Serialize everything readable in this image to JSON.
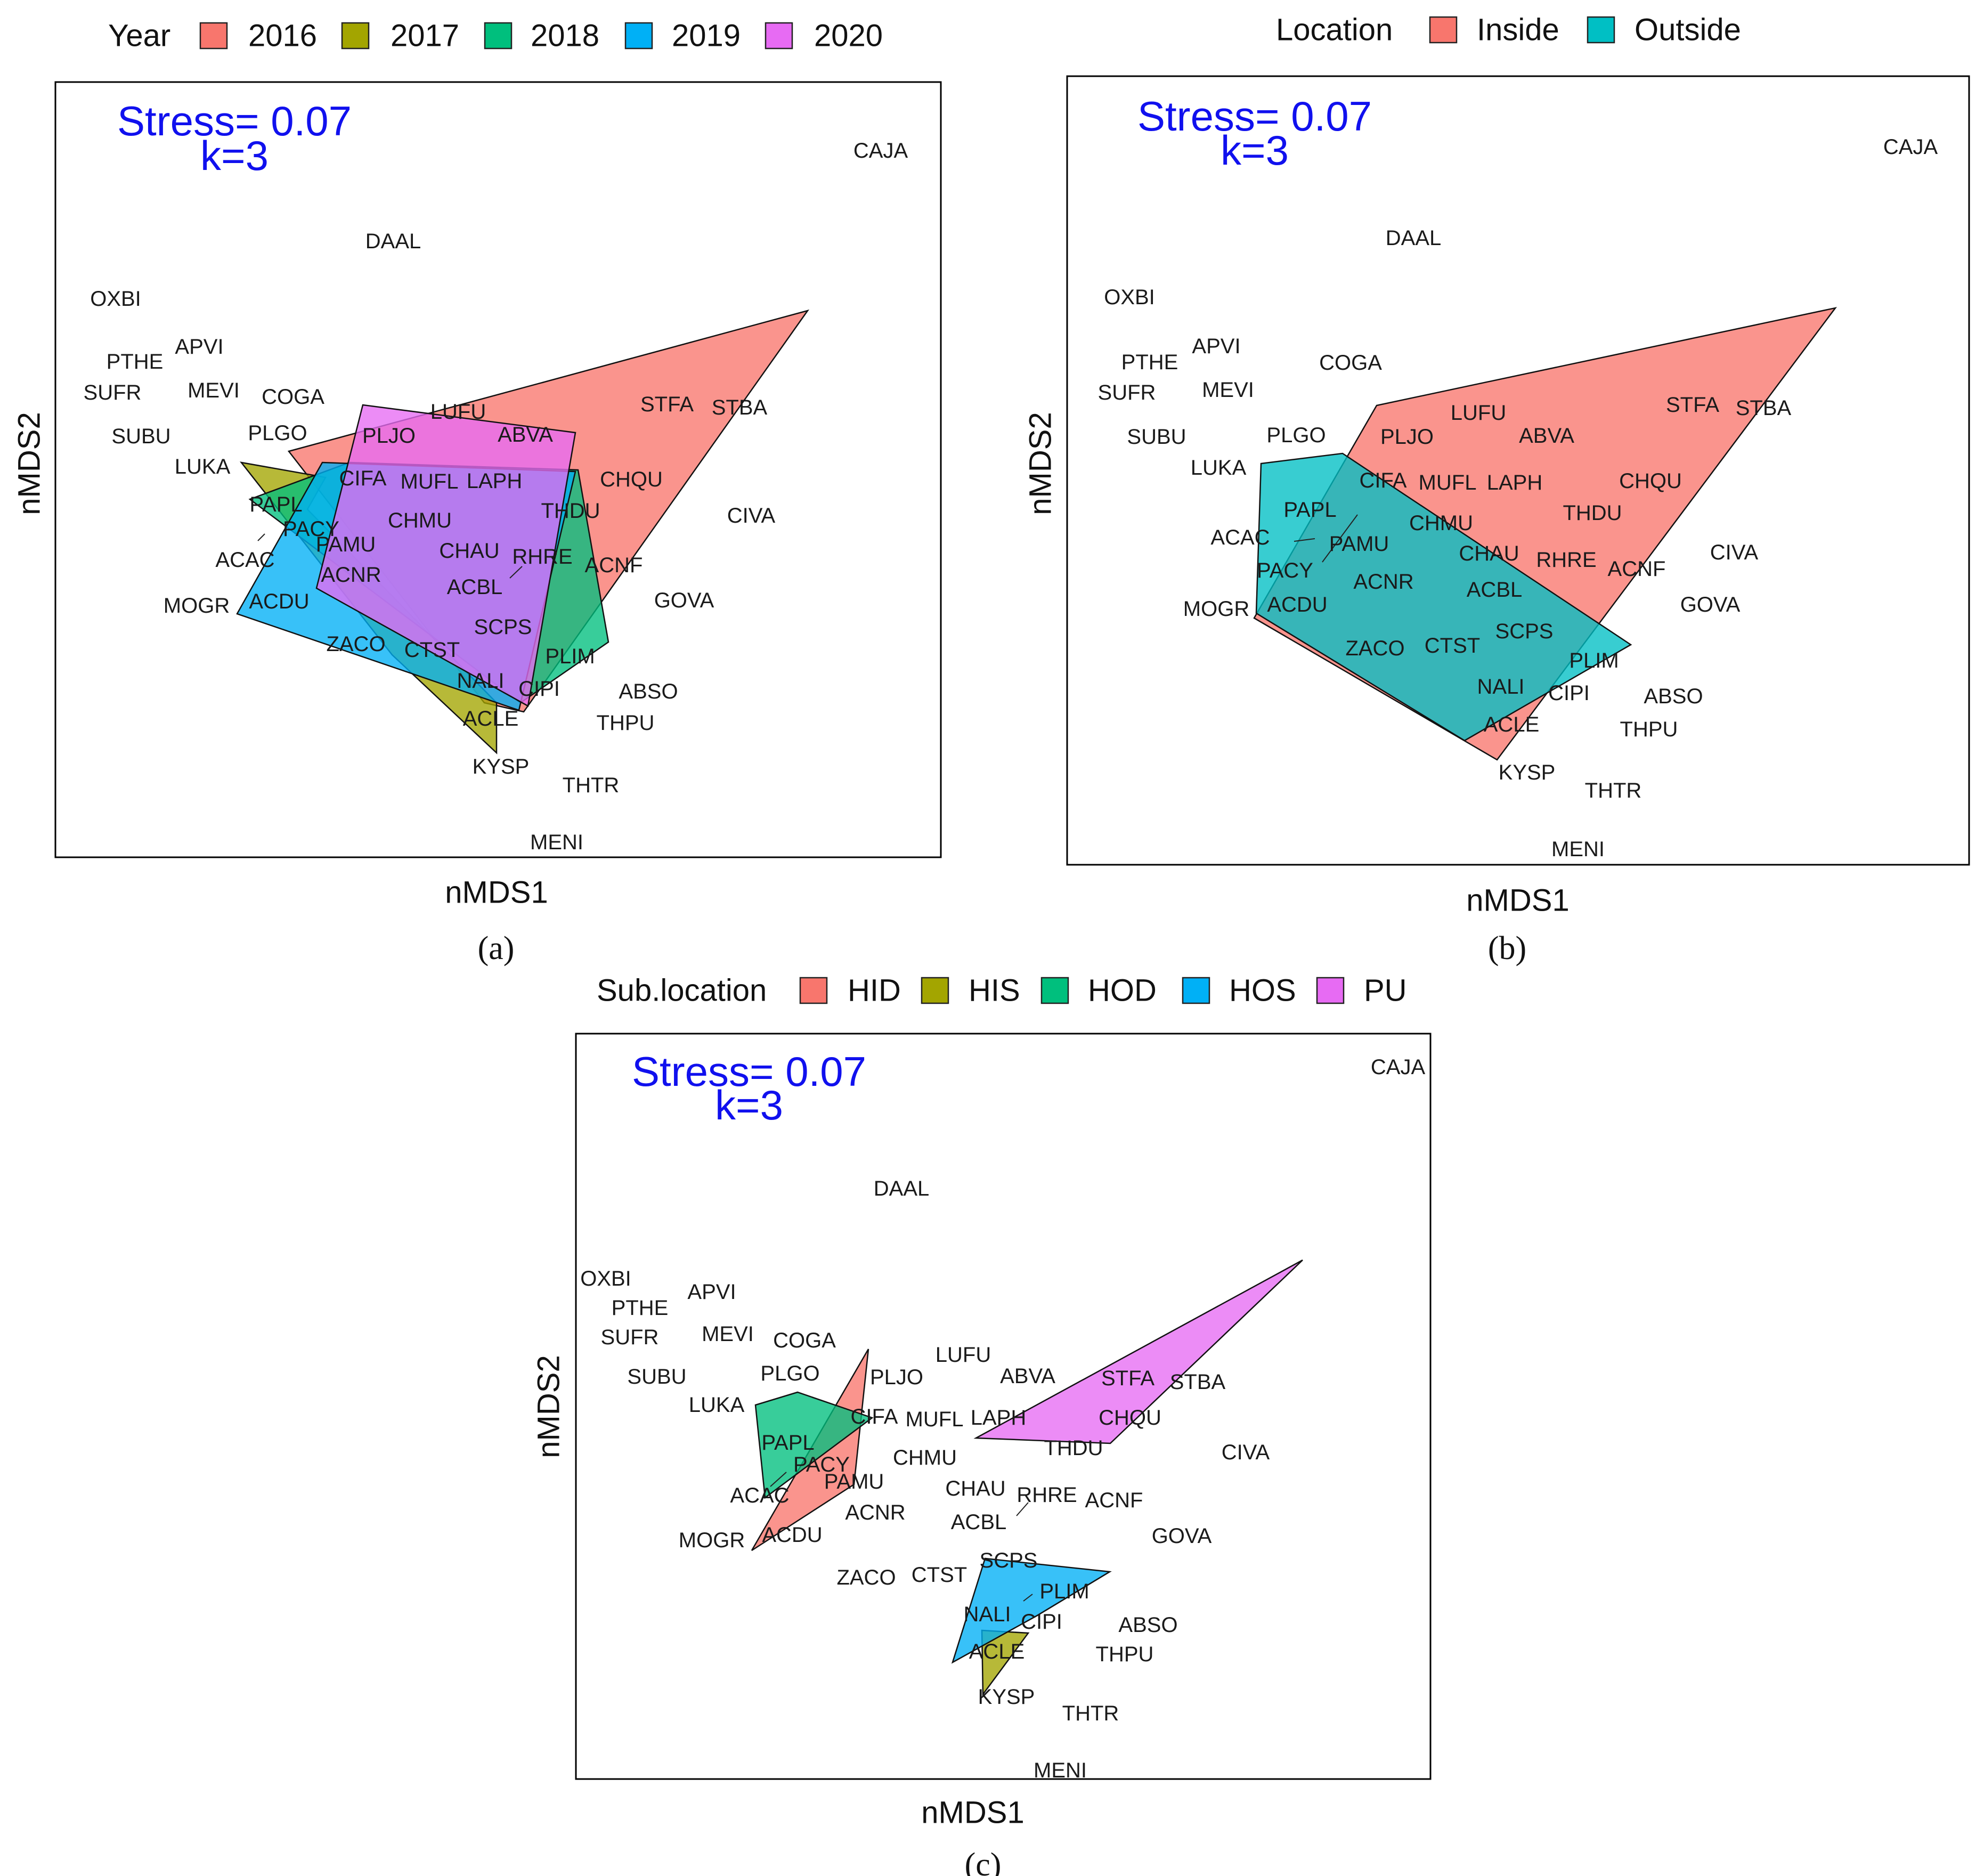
{
  "chart_data": [
    {
      "type": "scatter",
      "panel": "a",
      "caption": "(a)",
      "xlabel": "nMDS1",
      "ylabel": "nMDS2",
      "stress_text": "Stress= 0.07",
      "k_text": "k=3",
      "legend_title": "Year",
      "legend_placement": "top",
      "groups": [
        {
          "name": "2016",
          "color": "#F8766D"
        },
        {
          "name": "2017",
          "color": "#A3A500"
        },
        {
          "name": "2018",
          "color": "#00BF7D"
        },
        {
          "name": "2019",
          "color": "#00B0F6"
        },
        {
          "name": "2020",
          "color": "#E76BF3"
        }
      ]
    },
    {
      "type": "scatter",
      "panel": "b",
      "caption": "(b)",
      "xlabel": "nMDS1",
      "ylabel": "nMDS2",
      "stress_text": "Stress= 0.07",
      "k_text": "k=3",
      "legend_title": "Location",
      "legend_placement": "top",
      "groups": [
        {
          "name": "Inside",
          "color": "#F8766D"
        },
        {
          "name": "Outside",
          "color": "#00BFC4"
        }
      ]
    },
    {
      "type": "scatter",
      "panel": "c",
      "caption": "(c)",
      "xlabel": "nMDS1",
      "ylabel": "nMDS2",
      "stress_text": "Stress= 0.07",
      "k_text": "k=3",
      "legend_title": "Sub.location",
      "legend_placement": "top",
      "groups": [
        {
          "name": "HID",
          "color": "#F8766D"
        },
        {
          "name": "HIS",
          "color": "#A3A500"
        },
        {
          "name": "HOD",
          "color": "#00BF7D"
        },
        {
          "name": "HOS",
          "color": "#00B0F6"
        },
        {
          "name": "PU",
          "color": "#E76BF3"
        }
      ]
    }
  ],
  "species_codes": [
    "CAJA",
    "DAAL",
    "OXBI",
    "APVI",
    "PTHE",
    "SUFR",
    "MEVI",
    "COGA",
    "SUBU",
    "PLGO",
    "LUKA",
    "STFA",
    "STBA",
    "LUFU",
    "PLJO",
    "ABVA",
    "CIFA",
    "MUFL",
    "LAPH",
    "CHQU",
    "PAPL",
    "THDU",
    "CIVA",
    "CHMU",
    "PACY",
    "ACAC",
    "PAMU",
    "CHAU",
    "RHRE",
    "ACNF",
    "ACNR",
    "ACBL",
    "GOVA",
    "MOGR",
    "ACDU",
    "SCPS",
    "ZACO",
    "CTST",
    "PLIM",
    "NALI",
    "CIPI",
    "ABSO",
    "ACLE",
    "THPU",
    "KYSP",
    "THTR",
    "MENI"
  ]
}
